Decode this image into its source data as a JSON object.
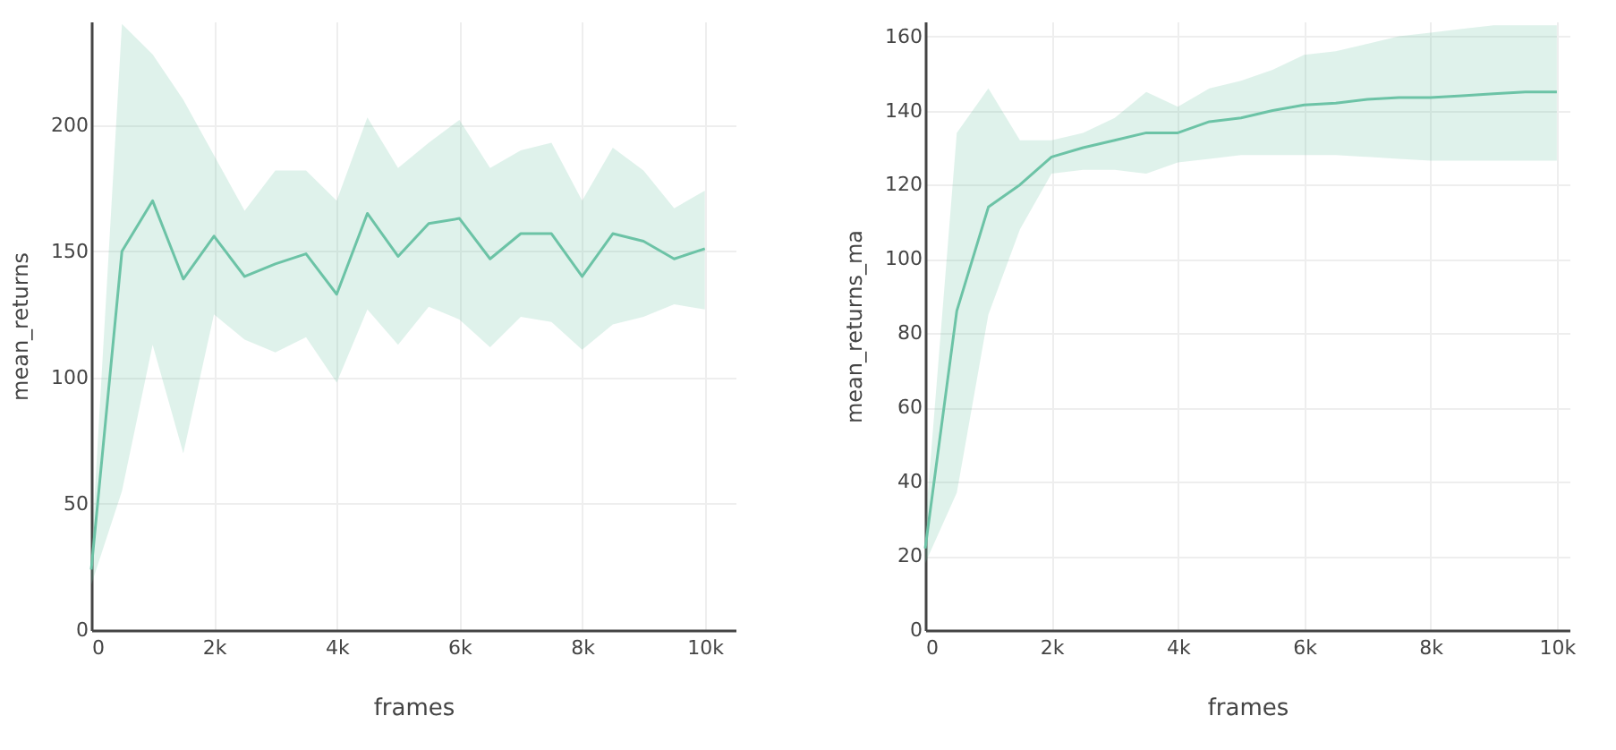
{
  "chart_data": [
    {
      "type": "line",
      "xlabel": "frames",
      "ylabel": "mean_returns",
      "grid": true,
      "xlim": [
        0,
        10500
      ],
      "ylim": [
        0,
        241
      ],
      "xticks": [
        0,
        {
          "value": 2000,
          "label": "2k"
        },
        {
          "value": 4000,
          "label": "4k"
        },
        {
          "value": 6000,
          "label": "6k"
        },
        {
          "value": 8000,
          "label": "8k"
        },
        {
          "value": 10000,
          "label": "10k"
        }
      ],
      "yticks": [
        0,
        50,
        100,
        150,
        200
      ],
      "x": [
        0,
        500,
        1000,
        1500,
        2000,
        2500,
        3000,
        3500,
        4000,
        4500,
        5000,
        5500,
        6000,
        6500,
        7000,
        7500,
        8000,
        8500,
        9000,
        9500,
        10000
      ],
      "series": [
        {
          "color": "#6cc3a6",
          "values": [
            24,
            150,
            170,
            139,
            156,
            140,
            145,
            149,
            133,
            165,
            148,
            161,
            163,
            147,
            157,
            157,
            140,
            157,
            154,
            147,
            151
          ],
          "lower": [
            18,
            55,
            113,
            70,
            125,
            115,
            110,
            116,
            98,
            127,
            113,
            128,
            123,
            112,
            124,
            122,
            111,
            121,
            124,
            129,
            127
          ],
          "upper": [
            30,
            240,
            228,
            210,
            188,
            166,
            182,
            182,
            170,
            203,
            183,
            193,
            202,
            183,
            190,
            193,
            170,
            191,
            182,
            167,
            174
          ]
        }
      ]
    },
    {
      "type": "line",
      "xlabel": "frames",
      "ylabel": "mean_returns_ma",
      "grid": true,
      "xlim": [
        0,
        10200
      ],
      "ylim": [
        0,
        164
      ],
      "xticks": [
        0,
        {
          "value": 2000,
          "label": "2k"
        },
        {
          "value": 4000,
          "label": "4k"
        },
        {
          "value": 6000,
          "label": "6k"
        },
        {
          "value": 8000,
          "label": "8k"
        },
        {
          "value": 10000,
          "label": "10k"
        }
      ],
      "yticks": [
        0,
        20,
        40,
        60,
        80,
        100,
        120,
        140,
        160
      ],
      "x": [
        0,
        500,
        1000,
        1500,
        2000,
        2500,
        3000,
        3500,
        4000,
        4500,
        5000,
        5500,
        6000,
        6500,
        7000,
        7500,
        8000,
        8500,
        9000,
        9500,
        10000
      ],
      "series": [
        {
          "color": "#6cc3a6",
          "values": [
            22,
            86,
            114,
            120,
            127.5,
            130,
            132,
            134,
            134,
            137,
            138,
            140,
            141.5,
            142,
            143,
            143.5,
            143.5,
            144,
            144.5,
            145,
            145
          ],
          "lower": [
            18,
            37,
            85,
            108,
            123,
            124,
            124,
            123,
            126,
            127,
            128,
            128,
            128,
            128,
            127.5,
            127,
            126.5,
            126.5,
            126.5,
            126.5,
            126.5
          ],
          "upper": [
            28,
            134,
            146,
            132,
            132,
            134,
            138,
            145,
            141,
            146,
            148,
            151,
            155,
            156,
            158,
            160,
            161,
            162,
            163,
            163,
            163
          ]
        }
      ]
    }
  ]
}
